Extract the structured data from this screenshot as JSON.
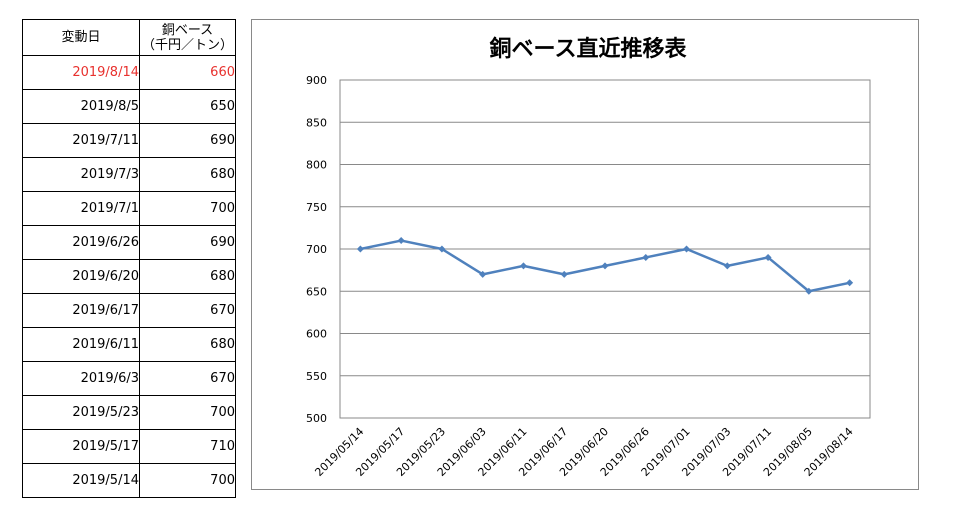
{
  "table": {
    "header_date": "変動日",
    "header_value_line1": "銅ベース",
    "header_value_line2": "（千円／トン）",
    "rows": [
      {
        "date": "2019/8/14",
        "value": "660"
      },
      {
        "date": "2019/8/5",
        "value": "650"
      },
      {
        "date": "2019/7/11",
        "value": "690"
      },
      {
        "date": "2019/7/3",
        "value": "680"
      },
      {
        "date": "2019/7/1",
        "value": "700"
      },
      {
        "date": "2019/6/26",
        "value": "690"
      },
      {
        "date": "2019/6/20",
        "value": "680"
      },
      {
        "date": "2019/6/17",
        "value": "670"
      },
      {
        "date": "2019/6/11",
        "value": "680"
      },
      {
        "date": "2019/6/3",
        "value": "670"
      },
      {
        "date": "2019/5/23",
        "value": "700"
      },
      {
        "date": "2019/5/17",
        "value": "710"
      },
      {
        "date": "2019/5/14",
        "value": "700"
      }
    ],
    "highlight_color": "#e8312e"
  },
  "chart_data": {
    "type": "line",
    "title": "銅ベース直近推移表",
    "xlabel": "",
    "ylabel": "",
    "categories": [
      "2019/05/14",
      "2019/05/17",
      "2019/05/23",
      "2019/06/03",
      "2019/06/11",
      "2019/06/17",
      "2019/06/20",
      "2019/06/26",
      "2019/07/01",
      "2019/07/03",
      "2019/07/11",
      "2019/08/05",
      "2019/08/14"
    ],
    "series": [
      {
        "values": [
          700,
          710,
          700,
          670,
          680,
          670,
          680,
          690,
          700,
          680,
          690,
          650,
          660
        ],
        "color": "#4f81bd"
      }
    ],
    "ylim": [
      500,
      900
    ],
    "yticks": [
      500,
      550,
      600,
      650,
      700,
      750,
      800,
      850,
      900
    ],
    "grid": true,
    "legend": "none"
  }
}
